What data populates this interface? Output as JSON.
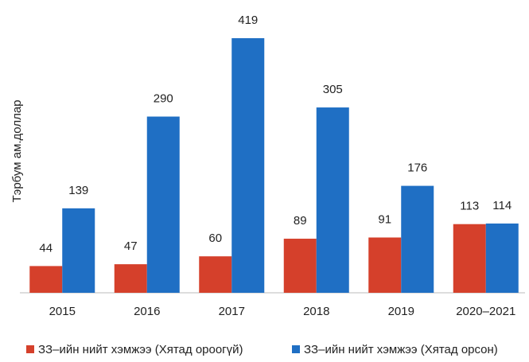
{
  "chart_data": {
    "type": "bar",
    "y_label": "Тэрбум ам.доллар",
    "categories": [
      "2015",
      "2016",
      "2017",
      "2018",
      "2019",
      "2020–2021"
    ],
    "series": [
      {
        "name": "ЗЗ–ийн нийт хэмжээ (Хятад ороогүй)",
        "color": "#d5402b",
        "values": [
          44,
          47,
          60,
          89,
          91,
          113
        ]
      },
      {
        "name": "ЗЗ–ийн нийт хэмжээ (Хятад орсон)",
        "color": "#1f6fc4",
        "values": [
          139,
          290,
          419,
          305,
          176,
          114
        ]
      }
    ],
    "legend": "bottom"
  }
}
